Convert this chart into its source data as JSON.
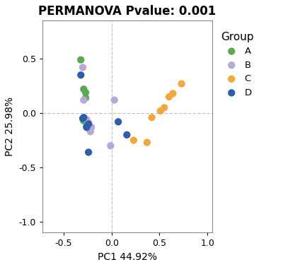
{
  "title": "PERMANOVA Pvalue: 0.001",
  "xlabel": "PC1 44.92%",
  "ylabel": "PC2 25.98%",
  "xlim": [
    -0.72,
    1.05
  ],
  "ylim": [
    -1.1,
    0.85
  ],
  "xticks": [
    -0.5,
    0.0,
    0.5,
    1.0
  ],
  "yticks": [
    -1.0,
    -0.5,
    0.0,
    0.5
  ],
  "groups": {
    "A": {
      "color": "#5aaa52",
      "ellipse_color": "#5aaa52",
      "points": [
        [
          -0.32,
          0.49
        ],
        [
          -0.29,
          0.22
        ],
        [
          -0.27,
          0.19
        ],
        [
          -0.27,
          0.14
        ],
        [
          -0.29,
          -0.07
        ],
        [
          -0.26,
          -0.12
        ],
        [
          -0.24,
          -0.14
        ]
      ]
    },
    "B": {
      "color": "#b8a8d8",
      "ellipse_color": "#b8a8d8",
      "points": [
        [
          -0.3,
          0.42
        ],
        [
          -0.29,
          0.12
        ],
        [
          -0.26,
          -0.06
        ],
        [
          -0.24,
          -0.09
        ],
        [
          -0.21,
          -0.13
        ],
        [
          -0.22,
          -0.17
        ],
        [
          0.03,
          0.12
        ],
        [
          -0.01,
          -0.3
        ]
      ]
    },
    "C": {
      "color": "#f0a840",
      "ellipse_color": "#f0a840",
      "points": [
        [
          0.37,
          -0.27
        ],
        [
          0.51,
          0.02
        ],
        [
          0.55,
          0.05
        ],
        [
          0.6,
          0.15
        ],
        [
          0.64,
          0.18
        ],
        [
          0.73,
          0.27
        ],
        [
          0.23,
          -0.25
        ],
        [
          0.42,
          -0.04
        ]
      ]
    },
    "D": {
      "color": "#2e5ea8",
      "ellipse_color": "#2e5ea8",
      "points": [
        [
          -0.32,
          0.35
        ],
        [
          -0.29,
          -0.04
        ],
        [
          -0.3,
          -0.05
        ],
        [
          -0.24,
          -0.1
        ],
        [
          -0.26,
          -0.13
        ],
        [
          -0.24,
          -0.36
        ],
        [
          0.16,
          -0.2
        ],
        [
          0.07,
          -0.08
        ]
      ]
    }
  },
  "bg_color": "#ffffff",
  "grid_color": "#aaaaaa",
  "point_size": 55,
  "legend_title": "Group",
  "title_fontsize": 12,
  "axis_label_fontsize": 10,
  "tick_fontsize": 9,
  "confidence": 0.95
}
